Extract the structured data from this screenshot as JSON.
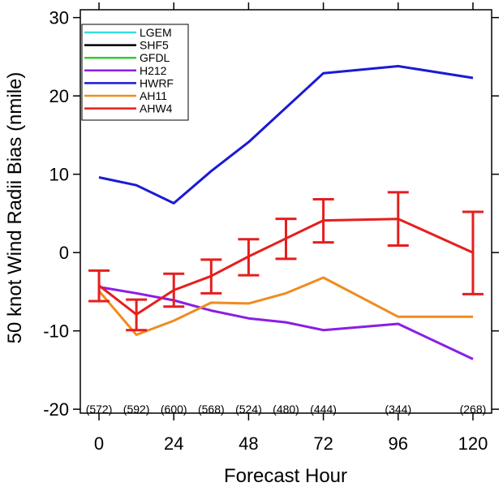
{
  "chart_data": {
    "type": "line",
    "title": "",
    "xlabel": "Forecast Hour",
    "ylabel": "50 knot Wind Radii Bias (nmile)",
    "xlim": [
      -6,
      126
    ],
    "ylim": [
      -20.5,
      31
    ],
    "xticks": [
      0,
      24,
      48,
      72,
      96,
      120
    ],
    "yticks": [
      -20,
      -10,
      0,
      10,
      20,
      30
    ],
    "grid": false,
    "legend_position": "top-left",
    "series": [
      {
        "name": "LGEM",
        "color": "#33e0e0",
        "x": [],
        "y": []
      },
      {
        "name": "SHF5",
        "color": "#000000",
        "x": [],
        "y": []
      },
      {
        "name": "GFDL",
        "color": "#33cc33",
        "x": [],
        "y": []
      },
      {
        "name": "H212",
        "color": "#8a1ee6",
        "x": [
          0,
          12,
          24,
          36,
          48,
          60,
          72,
          96,
          120
        ],
        "y": [
          -4.4,
          -5.2,
          -6.1,
          -7.4,
          -8.4,
          -8.9,
          -9.9,
          -9.1,
          -13.6
        ]
      },
      {
        "name": "HWRF",
        "color": "#1a1ad6",
        "x": [
          0,
          12,
          24,
          36,
          48,
          72,
          96,
          120
        ],
        "y": [
          9.6,
          8.6,
          6.3,
          10.4,
          14.1,
          22.9,
          23.8,
          22.3
        ]
      },
      {
        "name": "AH11",
        "color": "#f08c1e",
        "x": [
          0,
          12,
          24,
          36,
          48,
          60,
          72,
          96,
          120
        ],
        "y": [
          -4.9,
          -10.5,
          -8.7,
          -6.4,
          -6.5,
          -5.2,
          -3.2,
          -8.2,
          -8.2
        ]
      },
      {
        "name": "AHW4",
        "color": "#e61e1e",
        "x": [
          0,
          12,
          24,
          36,
          48,
          60,
          72,
          96,
          120
        ],
        "y": [
          -4.2,
          -7.9,
          -4.8,
          -3.0,
          -0.5,
          1.8,
          4.1,
          4.3,
          0.0
        ],
        "error_low": [
          -6.2,
          -9.9,
          -6.9,
          -5.2,
          -2.9,
          -0.8,
          1.3,
          0.9,
          -5.3
        ],
        "error_high": [
          -2.3,
          -6.0,
          -2.7,
          -0.9,
          1.7,
          4.3,
          6.8,
          7.7,
          5.2
        ]
      }
    ],
    "annotations": {
      "x": [
        0,
        12,
        24,
        36,
        48,
        60,
        72,
        96,
        120
      ],
      "labels": [
        "(572)",
        "(592)",
        "(600)",
        "(568)",
        "(524)",
        "(480)",
        "(444)",
        "(344)",
        "(268)"
      ]
    }
  }
}
